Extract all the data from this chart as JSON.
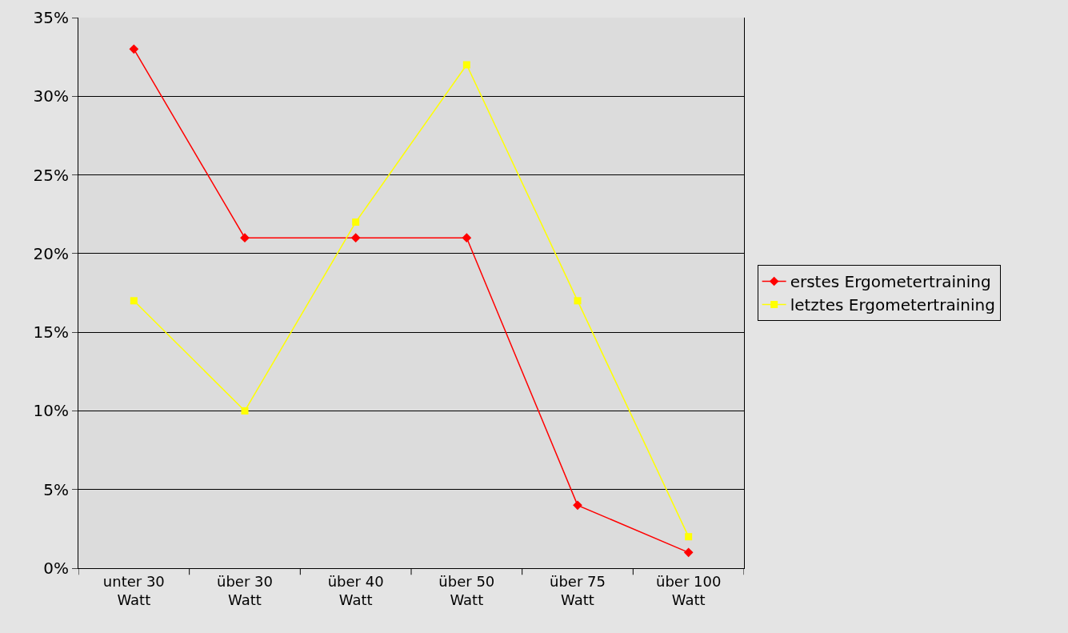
{
  "chart_data": {
    "type": "line",
    "categories": [
      "unter 30 Watt",
      "über 30 Watt",
      "über 40 Watt",
      "über 50 Watt",
      "über 75 Watt",
      "über 100 Watt"
    ],
    "series": [
      {
        "name": "erstes Ergometertraining",
        "color": "#ff0000",
        "marker": "diamond",
        "values": [
          33,
          21,
          21,
          21,
          4,
          1
        ]
      },
      {
        "name": "letztes Ergometertraining",
        "color": "#ffff00",
        "marker": "square",
        "values": [
          17,
          10,
          22,
          32,
          17,
          2
        ]
      }
    ],
    "ylim": [
      0,
      35
    ],
    "yticks": [
      {
        "value": 0,
        "label": "0%"
      },
      {
        "value": 5,
        "label": "5%"
      },
      {
        "value": 10,
        "label": "10%"
      },
      {
        "value": 15,
        "label": "15%"
      },
      {
        "value": 20,
        "label": "20%"
      },
      {
        "value": 25,
        "label": "25%"
      },
      {
        "value": 30,
        "label": "30%"
      },
      {
        "value": 35,
        "label": "35%"
      }
    ],
    "grid": "y",
    "legend": "right",
    "line_style": "solid"
  }
}
